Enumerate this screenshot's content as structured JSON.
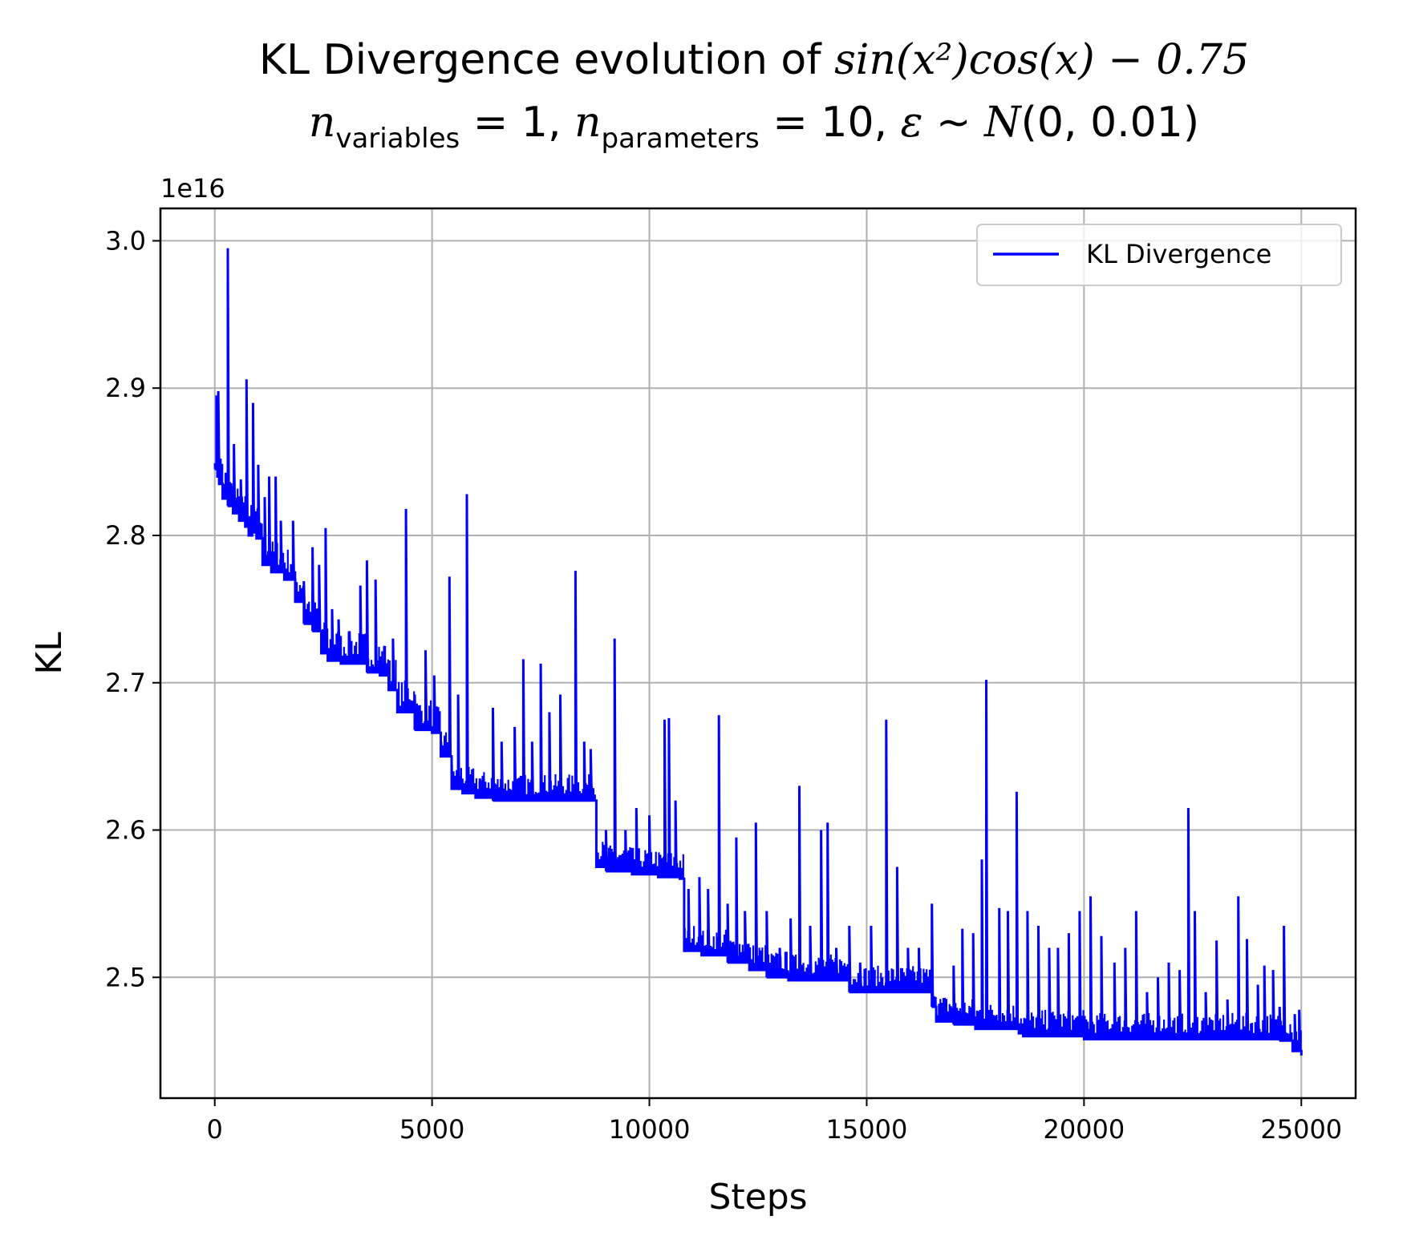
{
  "chart_data": {
    "type": "line",
    "title_line1_prefix": "KL Divergence evolution of ",
    "title_line1_formula": "sin(x²)cos(x) − 0.75",
    "title_line2": "n_variables = 1, n_parameters = 10, ε ~ N(0, 0.01)",
    "xlabel": "Steps",
    "ylabel": "KL",
    "y_offset_label": "1e16",
    "xlim": [
      -1250,
      26250
    ],
    "ylim": [
      2.418,
      3.022
    ],
    "x_ticks": [
      0,
      5000,
      10000,
      15000,
      20000,
      25000
    ],
    "x_tick_labels": [
      "0",
      "5000",
      "10000",
      "15000",
      "20000",
      "25000"
    ],
    "y_ticks": [
      2.5,
      2.6,
      2.7,
      2.8,
      2.9,
      3.0
    ],
    "y_tick_labels": [
      "2.5",
      "2.6",
      "2.7",
      "2.8",
      "2.9",
      "3.0"
    ],
    "grid": true,
    "legend_position": "top-right",
    "series": [
      {
        "name": "KL Divergence",
        "color": "#0000ff",
        "x": [
          0,
          60,
          100,
          180,
          300,
          420,
          560,
          700,
          780,
          860,
          960,
          1100,
          1300,
          1600,
          1850,
          2050,
          2250,
          2450,
          2600,
          2900,
          3200,
          3500,
          3800,
          4000,
          4200,
          4600,
          5000,
          5200,
          5450,
          5700,
          6000,
          6400,
          7000,
          7600,
          8200,
          8700,
          8780,
          9000,
          9600,
          10200,
          10700,
          10800,
          11200,
          11800,
          12300,
          12700,
          13200,
          13700,
          14200,
          14600,
          15000,
          15500,
          16000,
          16500,
          16600,
          17000,
          17500,
          18000,
          18500,
          18600,
          19000,
          19500,
          20000,
          20500,
          21000,
          21500,
          22000,
          22500,
          23000,
          23500,
          24000,
          24500,
          24700,
          24800,
          25000
        ],
        "values": [
          2.845,
          2.84,
          2.835,
          2.825,
          2.82,
          2.815,
          2.81,
          2.806,
          2.8,
          2.802,
          2.798,
          2.78,
          2.775,
          2.77,
          2.755,
          2.74,
          2.735,
          2.72,
          2.715,
          2.713,
          2.713,
          2.707,
          2.705,
          2.695,
          2.68,
          2.668,
          2.666,
          2.65,
          2.628,
          2.625,
          2.622,
          2.62,
          2.62,
          2.62,
          2.62,
          2.62,
          2.575,
          2.572,
          2.57,
          2.568,
          2.567,
          2.518,
          2.515,
          2.51,
          2.505,
          2.5,
          2.498,
          2.498,
          2.498,
          2.49,
          2.49,
          2.49,
          2.49,
          2.48,
          2.47,
          2.468,
          2.465,
          2.465,
          2.462,
          2.46,
          2.46,
          2.46,
          2.458,
          2.458,
          2.458,
          2.458,
          2.458,
          2.458,
          2.458,
          2.458,
          2.458,
          2.457,
          2.457,
          2.45,
          2.447
        ],
        "spikes": [
          {
            "x": 40,
            "y": 2.895
          },
          {
            "x": 80,
            "y": 2.898
          },
          {
            "x": 300,
            "y": 2.995
          },
          {
            "x": 440,
            "y": 2.862
          },
          {
            "x": 600,
            "y": 2.838
          },
          {
            "x": 730,
            "y": 2.906
          },
          {
            "x": 880,
            "y": 2.89
          },
          {
            "x": 1000,
            "y": 2.848
          },
          {
            "x": 1150,
            "y": 2.826
          },
          {
            "x": 1250,
            "y": 2.84
          },
          {
            "x": 1400,
            "y": 2.84
          },
          {
            "x": 1520,
            "y": 2.81
          },
          {
            "x": 1800,
            "y": 2.81
          },
          {
            "x": 2050,
            "y": 2.769
          },
          {
            "x": 2250,
            "y": 2.792
          },
          {
            "x": 2400,
            "y": 2.78
          },
          {
            "x": 2550,
            "y": 2.805
          },
          {
            "x": 2700,
            "y": 2.75
          },
          {
            "x": 2850,
            "y": 2.743
          },
          {
            "x": 3100,
            "y": 2.735
          },
          {
            "x": 3350,
            "y": 2.766
          },
          {
            "x": 3500,
            "y": 2.783
          },
          {
            "x": 3700,
            "y": 2.77
          },
          {
            "x": 3900,
            "y": 2.725
          },
          {
            "x": 4100,
            "y": 2.73
          },
          {
            "x": 4400,
            "y": 2.818
          },
          {
            "x": 4600,
            "y": 2.692
          },
          {
            "x": 4850,
            "y": 2.722
          },
          {
            "x": 5050,
            "y": 2.705
          },
          {
            "x": 5400,
            "y": 2.772
          },
          {
            "x": 5600,
            "y": 2.692
          },
          {
            "x": 5800,
            "y": 2.828
          },
          {
            "x": 6100,
            "y": 2.635
          },
          {
            "x": 6400,
            "y": 2.683
          },
          {
            "x": 6600,
            "y": 2.66
          },
          {
            "x": 6900,
            "y": 2.67
          },
          {
            "x": 7100,
            "y": 2.716
          },
          {
            "x": 7300,
            "y": 2.66
          },
          {
            "x": 7500,
            "y": 2.713
          },
          {
            "x": 7700,
            "y": 2.68
          },
          {
            "x": 7950,
            "y": 2.692
          },
          {
            "x": 8300,
            "y": 2.776
          },
          {
            "x": 8500,
            "y": 2.66
          },
          {
            "x": 8650,
            "y": 2.655
          },
          {
            "x": 9000,
            "y": 2.6
          },
          {
            "x": 9200,
            "y": 2.73
          },
          {
            "x": 9450,
            "y": 2.6
          },
          {
            "x": 9700,
            "y": 2.615
          },
          {
            "x": 10000,
            "y": 2.61
          },
          {
            "x": 10350,
            "y": 2.675
          },
          {
            "x": 10450,
            "y": 2.676
          },
          {
            "x": 10600,
            "y": 2.62
          },
          {
            "x": 10900,
            "y": 2.56
          },
          {
            "x": 11150,
            "y": 2.568
          },
          {
            "x": 11350,
            "y": 2.56
          },
          {
            "x": 11600,
            "y": 2.678
          },
          {
            "x": 11800,
            "y": 2.55
          },
          {
            "x": 12000,
            "y": 2.595
          },
          {
            "x": 12200,
            "y": 2.545
          },
          {
            "x": 12450,
            "y": 2.605
          },
          {
            "x": 12700,
            "y": 2.545
          },
          {
            "x": 13000,
            "y": 2.52
          },
          {
            "x": 13250,
            "y": 2.54
          },
          {
            "x": 13450,
            "y": 2.63
          },
          {
            "x": 13700,
            "y": 2.535
          },
          {
            "x": 13950,
            "y": 2.6
          },
          {
            "x": 14100,
            "y": 2.605
          },
          {
            "x": 14300,
            "y": 2.52
          },
          {
            "x": 14600,
            "y": 2.535
          },
          {
            "x": 14850,
            "y": 2.51
          },
          {
            "x": 15100,
            "y": 2.535
          },
          {
            "x": 15450,
            "y": 2.675
          },
          {
            "x": 15700,
            "y": 2.575
          },
          {
            "x": 15950,
            "y": 2.52
          },
          {
            "x": 16200,
            "y": 2.52
          },
          {
            "x": 16500,
            "y": 2.55
          },
          {
            "x": 16800,
            "y": 2.48
          },
          {
            "x": 17000,
            "y": 2.508
          },
          {
            "x": 17200,
            "y": 2.533
          },
          {
            "x": 17450,
            "y": 2.53
          },
          {
            "x": 17650,
            "y": 2.58
          },
          {
            "x": 17750,
            "y": 2.702
          },
          {
            "x": 18050,
            "y": 2.547
          },
          {
            "x": 18250,
            "y": 2.545
          },
          {
            "x": 18450,
            "y": 2.626
          },
          {
            "x": 18700,
            "y": 2.545
          },
          {
            "x": 18950,
            "y": 2.535
          },
          {
            "x": 19200,
            "y": 2.52
          },
          {
            "x": 19400,
            "y": 2.52
          },
          {
            "x": 19650,
            "y": 2.53
          },
          {
            "x": 19900,
            "y": 2.545
          },
          {
            "x": 20150,
            "y": 2.555
          },
          {
            "x": 20400,
            "y": 2.528
          },
          {
            "x": 20700,
            "y": 2.51
          },
          {
            "x": 20950,
            "y": 2.52
          },
          {
            "x": 21200,
            "y": 2.545
          },
          {
            "x": 21450,
            "y": 2.49
          },
          {
            "x": 21700,
            "y": 2.5
          },
          {
            "x": 21950,
            "y": 2.51
          },
          {
            "x": 22200,
            "y": 2.505
          },
          {
            "x": 22400,
            "y": 2.615
          },
          {
            "x": 22550,
            "y": 2.545
          },
          {
            "x": 22800,
            "y": 2.49
          },
          {
            "x": 23050,
            "y": 2.525
          },
          {
            "x": 23300,
            "y": 2.485
          },
          {
            "x": 23550,
            "y": 2.555
          },
          {
            "x": 23750,
            "y": 2.526
          },
          {
            "x": 24000,
            "y": 2.495
          },
          {
            "x": 24150,
            "y": 2.508
          },
          {
            "x": 24350,
            "y": 2.505
          },
          {
            "x": 24500,
            "y": 2.48
          },
          {
            "x": 24600,
            "y": 2.535
          },
          {
            "x": 24700,
            "y": 2.46
          },
          {
            "x": 24850,
            "y": 2.475
          },
          {
            "x": 24950,
            "y": 2.478
          }
        ]
      }
    ]
  }
}
